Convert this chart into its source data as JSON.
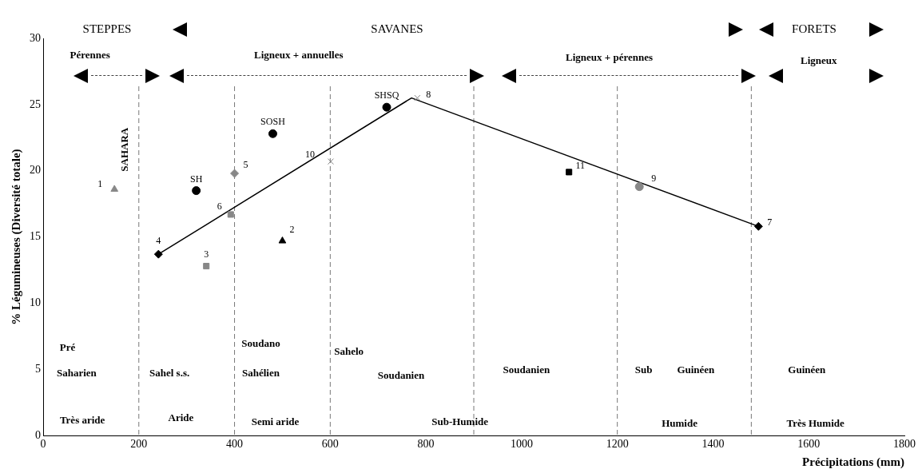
{
  "chart_data": {
    "type": "scatter",
    "xlabel": "Précipitations (mm)",
    "ylabel": "% Légumineuses (Diversité totale)",
    "xlim": [
      0,
      1800
    ],
    "xticks": [
      0,
      200,
      400,
      600,
      800,
      1000,
      1200,
      1400,
      1600,
      1800
    ],
    "ylim": [
      0,
      30
    ],
    "yticks": [
      0,
      5,
      10,
      15,
      20,
      25,
      30
    ],
    "grid": false,
    "legend": false,
    "series": [
      {
        "name": "1",
        "color": "#888888",
        "marker": "triangle",
        "x": [
          149
        ],
        "values": [
          18.6
        ]
      },
      {
        "name": "2",
        "color": "#000000",
        "marker": "triangle",
        "x": [
          500
        ],
        "values": [
          14.7
        ]
      },
      {
        "name": "3",
        "color": "#888888",
        "marker": "square",
        "x": [
          341
        ],
        "values": [
          12.8
        ]
      },
      {
        "name": "4",
        "color": "#000000",
        "marker": "diamond",
        "x": [
          241
        ],
        "values": [
          13.7
        ]
      },
      {
        "name": "5",
        "color": "#888888",
        "marker": "diamond",
        "x": [
          400
        ],
        "values": [
          19.8
        ]
      },
      {
        "name": "6",
        "color": "#888888",
        "marker": "square",
        "x": [
          392
        ],
        "values": [
          16.7
        ]
      },
      {
        "name": "7",
        "color": "#000000",
        "marker": "diamond",
        "x": [
          1495
        ],
        "values": [
          15.8
        ]
      },
      {
        "name": "8",
        "color": "#888888",
        "marker": "cross",
        "x": [
          782
        ],
        "values": [
          25.5
        ]
      },
      {
        "name": "9",
        "color": "#888888",
        "marker": "circle",
        "x": [
          1246
        ],
        "values": [
          18.8
        ]
      },
      {
        "name": "10",
        "color": "#888888",
        "marker": "cross",
        "x": [
          601
        ],
        "values": [
          20.7
        ]
      },
      {
        "name": "11",
        "color": "#000000",
        "marker": "square",
        "x": [
          1099
        ],
        "values": [
          19.9
        ]
      },
      {
        "name": "SH",
        "color": "#000000",
        "marker": "circle",
        "x": [
          320
        ],
        "values": [
          18.5
        ]
      },
      {
        "name": "SOSH",
        "color": "#000000",
        "marker": "circle",
        "x": [
          480
        ],
        "values": [
          22.8
        ]
      },
      {
        "name": "SHSQ",
        "color": "#000000",
        "marker": "circle",
        "x": [
          718
        ],
        "values": [
          24.8
        ]
      },
      {
        "type": "line",
        "color": "#000000",
        "marker": "none",
        "line_style": "solid",
        "x": [
          241,
          770,
          1495
        ],
        "values": [
          13.7,
          25.5,
          15.8
        ]
      }
    ],
    "ref_lines": [
      {
        "axis": "x",
        "value": 200,
        "color": "#777777",
        "line_style": "dashed"
      },
      {
        "axis": "x",
        "value": 400,
        "color": "#777777",
        "line_style": "dashed"
      },
      {
        "axis": "x",
        "value": 600,
        "color": "#777777",
        "line_style": "dashed"
      },
      {
        "axis": "x",
        "value": 900,
        "color": "#777777",
        "line_style": "dashed"
      },
      {
        "axis": "x",
        "value": 1200,
        "color": "#777777",
        "line_style": "dashed"
      },
      {
        "axis": "x",
        "value": 1480,
        "color": "#777777",
        "line_style": "dashed"
      }
    ],
    "annotations": [
      "STEPPES",
      "SAVANES",
      "FORETS",
      "Pérennes",
      "Ligneux + annuelles",
      "Ligneux + pérennes",
      "Ligneux",
      "SAHARA",
      "Pré",
      "Saharien",
      "Sahel s.s.",
      "Soudano",
      "Sahélien",
      "Sahelo",
      "Soudanien",
      "Soudanien",
      "Sub",
      "Guinéen",
      "Guinéen",
      "Très aride",
      "Aride",
      "Semi aride",
      "Sub-Humide",
      "Humide",
      "Très Humide"
    ]
  }
}
